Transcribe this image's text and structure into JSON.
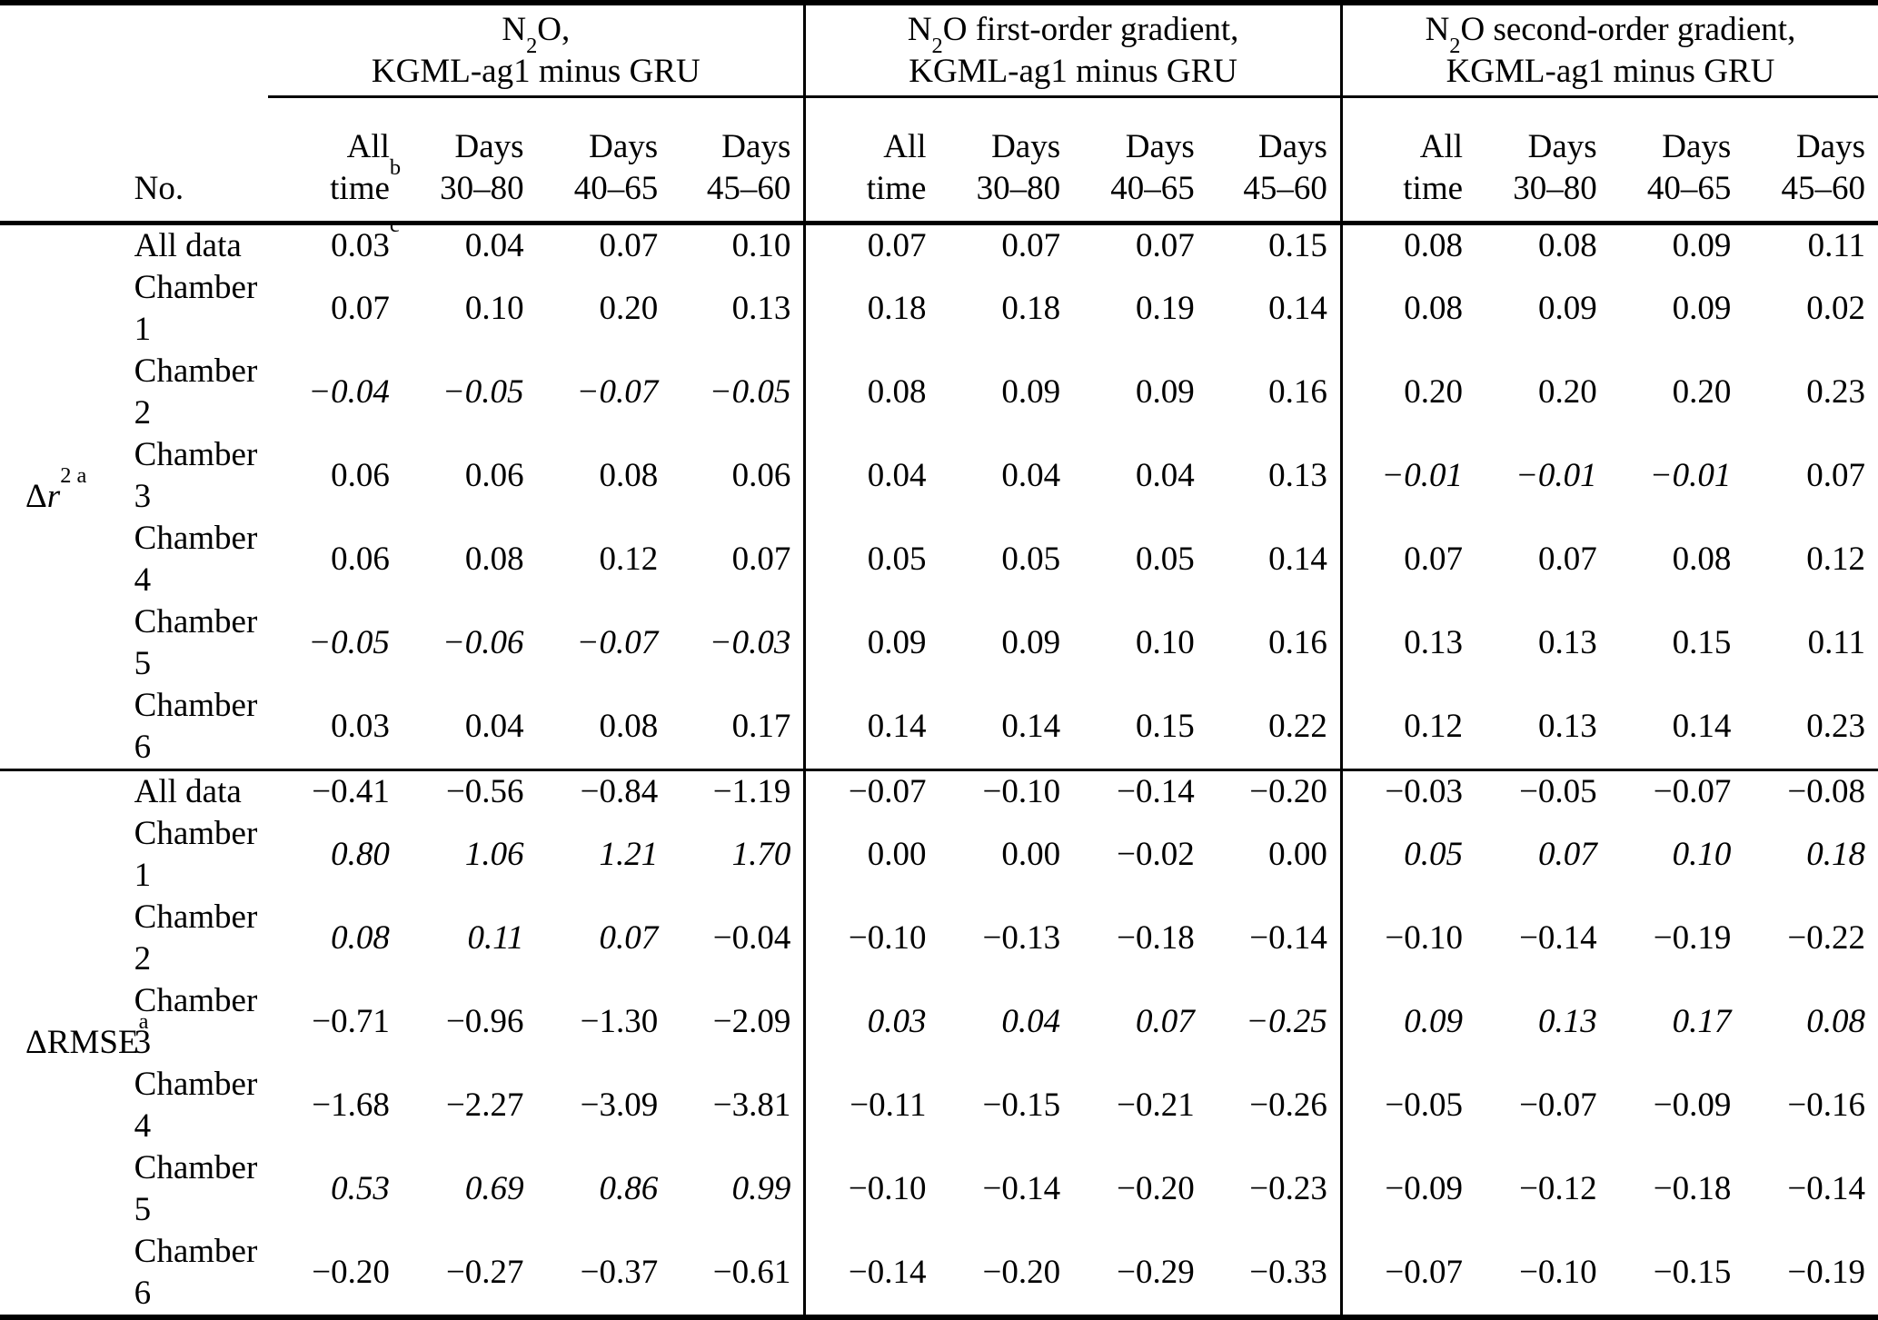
{
  "table": {
    "no_label": "No.",
    "row_group_labels": [
      {
        "pre": "Δ",
        "it": "r",
        "rom": "",
        "sup": "2 a"
      },
      {
        "pre": "Δ",
        "it": "",
        "rom": "RMSE",
        "sup": "a"
      }
    ],
    "column_groups": [
      {
        "formula_pre": "N",
        "formula_sub": "2",
        "formula_post": "O,",
        "line2": "KGML-ag1 minus GRU",
        "columns": [
          {
            "l1": "All",
            "l2": "time",
            "sup": "b"
          },
          {
            "l1": "Days",
            "l2": "30–80"
          },
          {
            "l1": "Days",
            "l2": "40–65"
          },
          {
            "l1": "Days",
            "l2": "45–60"
          }
        ]
      },
      {
        "formula_pre": "N",
        "formula_sub": "2",
        "formula_post": "O first-order gradient,",
        "line2": "KGML-ag1 minus GRU",
        "columns": [
          {
            "l1": "All",
            "l2": "time"
          },
          {
            "l1": "Days",
            "l2": "30–80"
          },
          {
            "l1": "Days",
            "l2": "40–65"
          },
          {
            "l1": "Days",
            "l2": "45–60"
          }
        ]
      },
      {
        "formula_pre": "N",
        "formula_sub": "2",
        "formula_post": "O second-order gradient,",
        "line2": "KGML-ag1 minus GRU",
        "columns": [
          {
            "l1": "All",
            "l2": "time"
          },
          {
            "l1": "Days",
            "l2": "30–80"
          },
          {
            "l1": "Days",
            "l2": "40–65"
          },
          {
            "l1": "Days",
            "l2": "45–60"
          }
        ]
      }
    ],
    "sections": [
      {
        "rows": [
          {
            "name": "All data",
            "values": [
              {
                "t": "0.03",
                "sup": "c"
              },
              "0.04",
              "0.07",
              "0.10",
              "0.07",
              "0.07",
              "0.07",
              "0.15",
              "0.08",
              "0.08",
              "0.09",
              "0.11"
            ]
          },
          {
            "name": "Chamber 1",
            "values": [
              "0.07",
              "0.10",
              "0.20",
              "0.13",
              "0.18",
              "0.18",
              "0.19",
              "0.14",
              "0.08",
              "0.09",
              "0.09",
              "0.02"
            ]
          },
          {
            "name": "Chamber 2",
            "values": [
              {
                "t": "−0.04",
                "i": true
              },
              {
                "t": "−0.05",
                "i": true
              },
              {
                "t": "−0.07",
                "i": true
              },
              {
                "t": "−0.05",
                "i": true
              },
              "0.08",
              "0.09",
              "0.09",
              "0.16",
              "0.20",
              "0.20",
              "0.20",
              "0.23"
            ]
          },
          {
            "name": "Chamber 3",
            "values": [
              "0.06",
              "0.06",
              "0.08",
              "0.06",
              "0.04",
              "0.04",
              "0.04",
              "0.13",
              {
                "t": "−0.01",
                "i": true
              },
              {
                "t": "−0.01",
                "i": true
              },
              {
                "t": "−0.01",
                "i": true
              },
              "0.07"
            ]
          },
          {
            "name": "Chamber 4",
            "values": [
              "0.06",
              "0.08",
              "0.12",
              "0.07",
              "0.05",
              "0.05",
              "0.05",
              "0.14",
              "0.07",
              "0.07",
              "0.08",
              "0.12"
            ]
          },
          {
            "name": "Chamber 5",
            "values": [
              {
                "t": "−0.05",
                "i": true
              },
              {
                "t": "−0.06",
                "i": true
              },
              {
                "t": "−0.07",
                "i": true
              },
              {
                "t": "−0.03",
                "i": true
              },
              "0.09",
              "0.09",
              "0.10",
              "0.16",
              "0.13",
              "0.13",
              "0.15",
              "0.11"
            ]
          },
          {
            "name": "Chamber 6",
            "values": [
              "0.03",
              "0.04",
              "0.08",
              "0.17",
              "0.14",
              "0.14",
              "0.15",
              "0.22",
              "0.12",
              "0.13",
              "0.14",
              "0.23"
            ]
          }
        ]
      },
      {
        "rows": [
          {
            "name": "All data",
            "values": [
              "−0.41",
              "−0.56",
              "−0.84",
              "−1.19",
              "−0.07",
              "−0.10",
              "−0.14",
              "−0.20",
              "−0.03",
              "−0.05",
              "−0.07",
              "−0.08"
            ]
          },
          {
            "name": "Chamber 1",
            "values": [
              {
                "t": "0.80",
                "i": true
              },
              {
                "t": "1.06",
                "i": true
              },
              {
                "t": "1.21",
                "i": true
              },
              {
                "t": "1.70",
                "i": true
              },
              "0.00",
              "0.00",
              "−0.02",
              "0.00",
              {
                "t": "0.05",
                "i": true
              },
              {
                "t": "0.07",
                "i": true
              },
              {
                "t": "0.10",
                "i": true
              },
              {
                "t": "0.18",
                "i": true
              }
            ]
          },
          {
            "name": "Chamber 2",
            "values": [
              {
                "t": "0.08",
                "i": true
              },
              {
                "t": "0.11",
                "i": true
              },
              {
                "t": "0.07",
                "i": true
              },
              "−0.04",
              "−0.10",
              "−0.13",
              "−0.18",
              "−0.14",
              "−0.10",
              "−0.14",
              "−0.19",
              "−0.22"
            ]
          },
          {
            "name": "Chamber 3",
            "values": [
              "−0.71",
              "−0.96",
              "−1.30",
              "−2.09",
              {
                "t": "0.03",
                "i": true
              },
              {
                "t": "0.04",
                "i": true
              },
              {
                "t": "0.07",
                "i": true
              },
              {
                "t": "−0.25",
                "i": true
              },
              {
                "t": "0.09",
                "i": true
              },
              {
                "t": "0.13",
                "i": true
              },
              {
                "t": "0.17",
                "i": true
              },
              {
                "t": "0.08",
                "i": true
              }
            ]
          },
          {
            "name": "Chamber 4",
            "values": [
              "−1.68",
              "−2.27",
              "−3.09",
              "−3.81",
              "−0.11",
              "−0.15",
              "−0.21",
              "−0.26",
              "−0.05",
              "−0.07",
              "−0.09",
              "−0.16"
            ]
          },
          {
            "name": "Chamber 5",
            "values": [
              {
                "t": "0.53",
                "i": true
              },
              {
                "t": "0.69",
                "i": true
              },
              {
                "t": "0.86",
                "i": true
              },
              {
                "t": "0.99",
                "i": true
              },
              "−0.10",
              "−0.14",
              "−0.20",
              "−0.23",
              "−0.09",
              "−0.12",
              "−0.18",
              "−0.14"
            ]
          },
          {
            "name": "Chamber 6",
            "values": [
              "−0.20",
              "−0.27",
              "−0.37",
              "−0.61",
              "−0.14",
              "−0.20",
              "−0.29",
              "−0.33",
              "−0.07",
              "−0.10",
              "−0.15",
              "−0.19"
            ]
          }
        ]
      }
    ]
  }
}
